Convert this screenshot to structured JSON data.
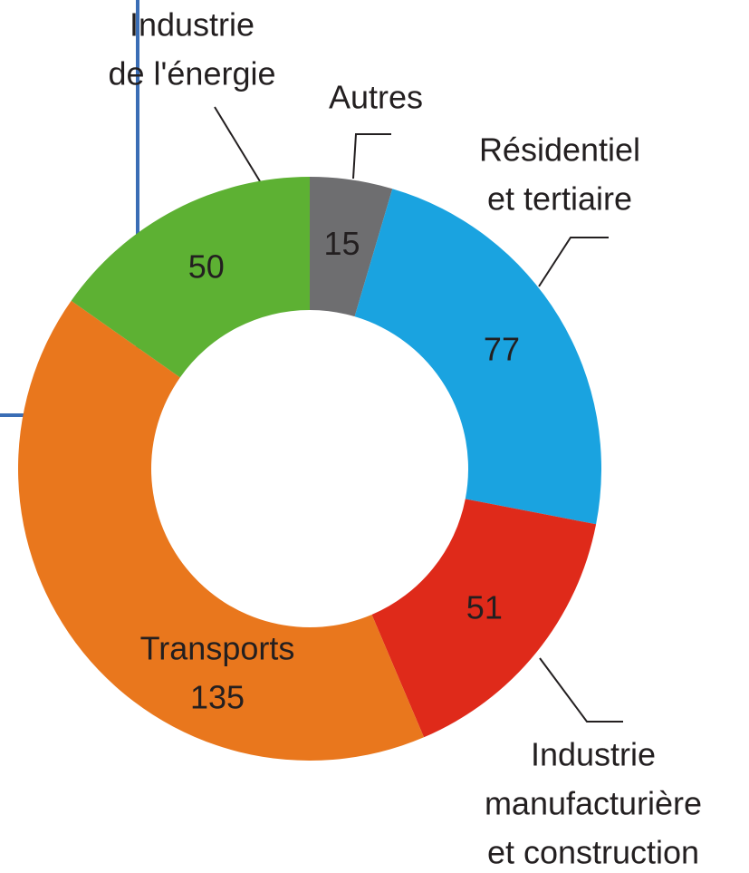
{
  "chart_data": {
    "type": "donut",
    "categories": [
      [
        "Autres"
      ],
      [
        "Résidentiel",
        "et tertiaire"
      ],
      [
        "Industrie",
        "manufacturière",
        "et construction"
      ],
      [
        "Transports"
      ],
      [
        "Industrie",
        "de l'énergie"
      ]
    ],
    "values": [
      15,
      77,
      51,
      135,
      50
    ],
    "colors": [
      "#6e6e70",
      "#1aa3e0",
      "#df2a1a",
      "#e9771d",
      "#5db133"
    ]
  }
}
